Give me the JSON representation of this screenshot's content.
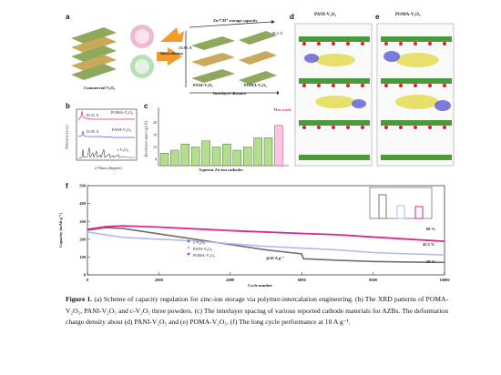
{
  "panel_letters": {
    "a": "a",
    "b": "b",
    "c": "c",
    "d": "d",
    "e": "e",
    "f": "f"
  },
  "panel_a": {
    "commercial_label": "Commercial V₂O₅",
    "intercalation_label": "Intercalation",
    "storage_label": "Zn²⁺/H⁺ storage capacity",
    "pani_label": "PANI-V₂O₅",
    "poma_label": "POMA-V₂O₅",
    "spacing_axis_label": "Interlayer distance",
    "pani_spacing": "13.95 Å",
    "poma_spacing": "18.3 Å"
  },
  "panel_b": {
    "labels": [
      "POMA-V₂O₅",
      "PANI-V₂O₅",
      "c-V₂O₅"
    ],
    "peak_annotations": [
      "18.31 Å",
      "13.95 Å"
    ],
    "ylabel": "Intensity (a.u.)",
    "xlabel": "2 Theta (degree)",
    "xticks": [
      "10",
      "20",
      "30",
      "40",
      "50",
      "60"
    ]
  },
  "panel_c": {
    "ylabel": "Interlayer spacing (Å)",
    "xlabel": "Aqueous Zn-ion cathodes",
    "this_work": "This work",
    "yticks": [
      "8",
      "12",
      "16",
      "20"
    ]
  },
  "panel_d": {
    "title": "PANI-V₂O₅"
  },
  "panel_e": {
    "title": "POMA-V₂O₅"
  },
  "panel_f": {
    "ylabel": "Capacity (mAh g⁻¹)",
    "xlabel": "Cycle number",
    "yticks": [
      "0",
      "100",
      "200",
      "300",
      "400",
      "500"
    ],
    "xticks": [
      "0",
      "2000",
      "4000",
      "6000",
      "8000",
      "10000"
    ],
    "legend": [
      "c-V₂O₅",
      "PANI-V₂O₅",
      "POMA-V₂O₅"
    ],
    "rate_label": "@10 A g⁻¹",
    "retentions": [
      "68 %",
      "45.5 %",
      "30 %"
    ],
    "colors": {
      "c": "#6e6e6e",
      "pani": "#b3b9f0",
      "poma": "#e0268a"
    }
  },
  "caption": {
    "fig_label": "Figure 1.",
    "text": " (a) Scheme of capacity regulation for zinc-ion storage via polymer-intercalation engineering. (b) The XRD patterns of POMA-V₂O₅, PANI-V₂O₅ and c-V₂O₅ three powders. (c) The interlayer spacing of various reported cathode materials for AZBs. The deformation charge density about (d) PANI-V₂O₅ and (e) POMA-V₂O₅. (f) The long cycle performance at 10 A g⁻¹."
  }
}
